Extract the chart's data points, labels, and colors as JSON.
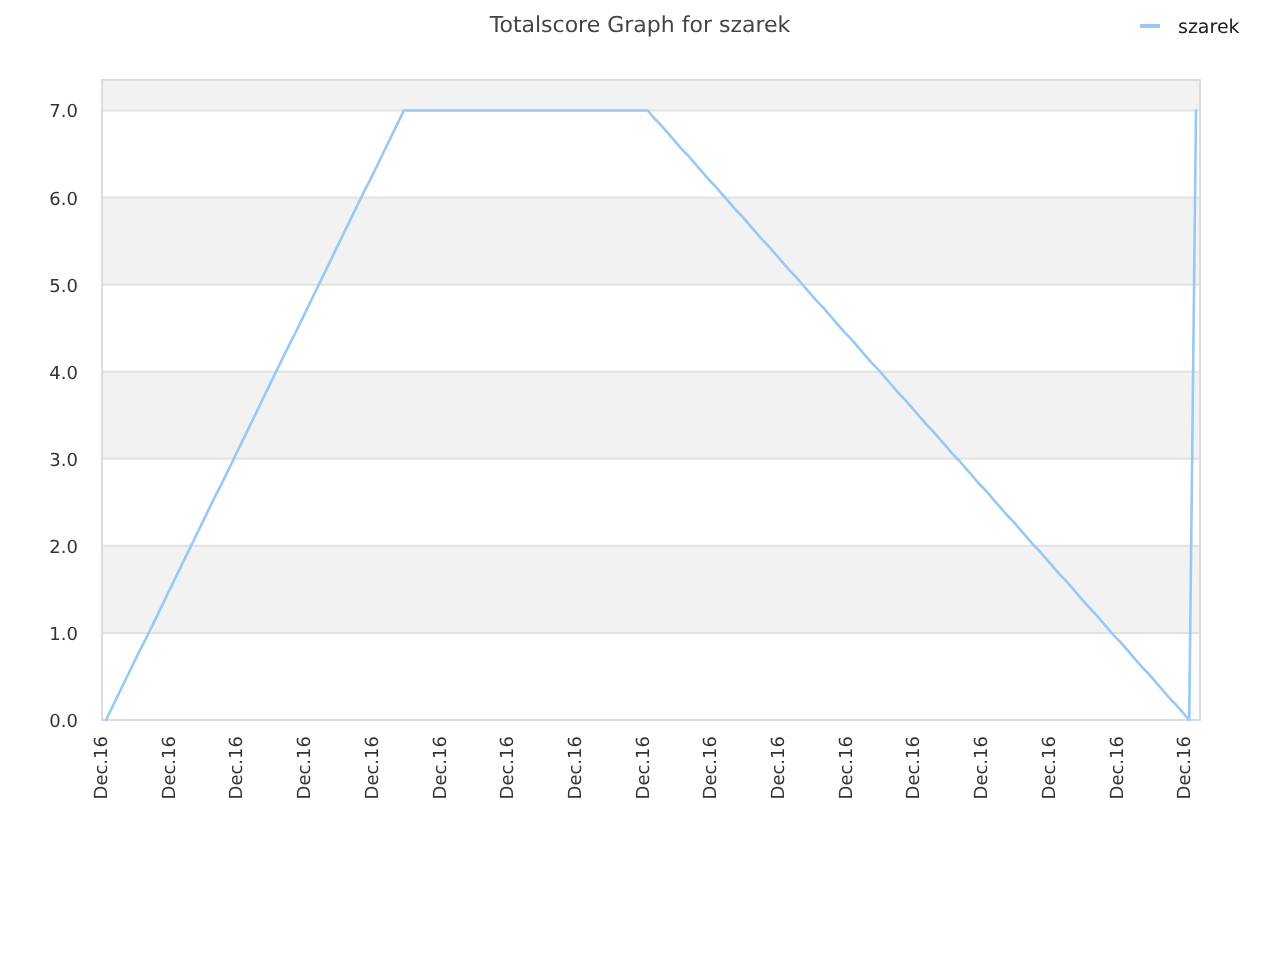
{
  "chart_data": {
    "type": "line",
    "title": "Totalscore Graph for szarek",
    "categories": [
      "Dec.16",
      null,
      null,
      null,
      null,
      null,
      null,
      null,
      null,
      null,
      "Dec.16",
      null,
      null,
      null,
      null,
      null,
      null,
      null,
      null,
      null,
      "Dec.16",
      null,
      null,
      null,
      null,
      null,
      null,
      null,
      null,
      null,
      "Dec.16",
      null,
      null,
      null,
      null,
      null,
      null,
      null,
      null,
      null,
      "Dec.16",
      null,
      null,
      null,
      null,
      null,
      null,
      null,
      null,
      null,
      "Dec.16",
      null,
      null,
      null,
      null,
      null,
      null,
      null,
      null,
      null,
      "Dec.16",
      null,
      null,
      null,
      null,
      null,
      null,
      null,
      null,
      null,
      "Dec.16",
      null,
      null,
      null,
      null,
      null,
      null,
      null,
      null,
      null,
      "Dec.16",
      null,
      null,
      null,
      null,
      null,
      null,
      null,
      null,
      null,
      "Dec.16",
      null,
      null,
      null,
      null,
      null,
      null,
      null,
      null,
      null,
      "Dec.16",
      null,
      null,
      null,
      null,
      null,
      null,
      null,
      null,
      null,
      "Dec.16",
      null,
      null,
      null,
      null,
      null,
      null,
      null,
      null,
      null,
      "Dec.16",
      null,
      null,
      null,
      null,
      null,
      null,
      null,
      null,
      null,
      "Dec.16",
      null,
      null,
      null,
      null,
      null,
      null,
      null,
      null,
      null,
      "Dec.16",
      null,
      null,
      null,
      null,
      null,
      null,
      null,
      null,
      null,
      "Dec.16",
      null,
      null,
      null,
      null,
      null,
      null,
      null,
      null,
      null,
      "Dec.16",
      null
    ],
    "series": [
      {
        "name": "szarek",
        "color": "#99c8f5",
        "values": [
          0,
          0.16,
          0.32,
          0.48,
          0.64,
          0.8,
          0.95,
          1.11,
          1.27,
          1.43,
          1.59,
          1.75,
          1.91,
          2.07,
          2.23,
          2.39,
          2.55,
          2.7,
          2.86,
          3.02,
          3.18,
          3.34,
          3.5,
          3.66,
          3.82,
          3.98,
          4.14,
          4.3,
          4.45,
          4.61,
          4.77,
          4.93,
          5.09,
          5.25,
          5.41,
          5.57,
          5.73,
          5.89,
          6.05,
          6.2,
          6.36,
          6.52,
          6.68,
          6.84,
          7,
          7,
          7,
          7,
          7,
          7,
          7,
          7,
          7,
          7,
          7,
          7,
          7,
          7,
          7,
          7,
          7,
          7,
          7,
          7,
          7,
          7,
          7,
          7,
          7,
          7,
          7,
          7,
          7,
          7,
          7,
          7,
          7,
          7,
          7,
          7,
          7,
          6.91,
          6.83,
          6.74,
          6.65,
          6.56,
          6.48,
          6.39,
          6.3,
          6.21,
          6.13,
          6.04,
          5.95,
          5.86,
          5.78,
          5.69,
          5.6,
          5.51,
          5.43,
          5.34,
          5.25,
          5.16,
          5.08,
          4.99,
          4.9,
          4.81,
          4.73,
          4.64,
          4.55,
          4.46,
          4.38,
          4.29,
          4.2,
          4.11,
          4.03,
          3.94,
          3.85,
          3.76,
          3.68,
          3.59,
          3.5,
          3.41,
          3.33,
          3.24,
          3.15,
          3.06,
          2.98,
          2.89,
          2.8,
          2.71,
          2.63,
          2.54,
          2.45,
          2.36,
          2.28,
          2.19,
          2.1,
          2.01,
          1.93,
          1.84,
          1.75,
          1.66,
          1.58,
          1.49,
          1.4,
          1.31,
          1.23,
          1.14,
          1.05,
          0.96,
          0.88,
          0.79,
          0.7,
          0.61,
          0.53,
          0.44,
          0.35,
          0.26,
          0.18,
          0.09,
          0,
          7
        ]
      }
    ],
    "ylim": [
      0,
      7.35
    ],
    "yticks": [
      {
        "value": 0,
        "label": "0.0"
      },
      {
        "value": 1,
        "label": "1.0"
      },
      {
        "value": 2,
        "label": "2.0"
      },
      {
        "value": 3,
        "label": "3.0"
      },
      {
        "value": 4,
        "label": "4.0"
      },
      {
        "value": 5,
        "label": "5.0"
      },
      {
        "value": 6,
        "label": "6.0"
      },
      {
        "value": 7,
        "label": "7.0"
      }
    ],
    "grid": "y",
    "legend": "top right",
    "marker": "none",
    "line_style": "solid"
  }
}
